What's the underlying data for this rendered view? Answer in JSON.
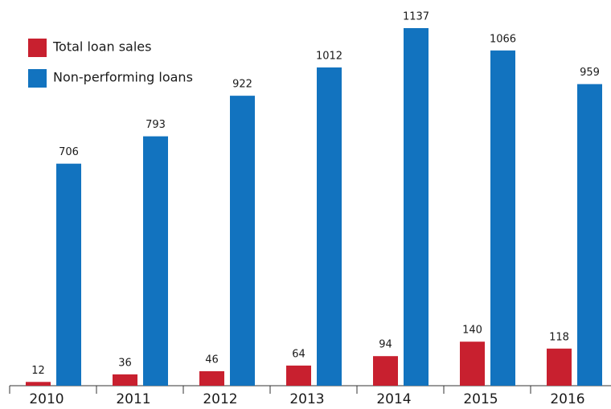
{
  "chart_data": {
    "type": "bar",
    "categories": [
      "2010",
      "2011",
      "2012",
      "2013",
      "2014",
      "2015",
      "2016"
    ],
    "series": [
      {
        "name": "Total loan sales",
        "color": "#c8202f",
        "values": [
          12,
          36,
          46,
          64,
          94,
          140,
          118
        ]
      },
      {
        "name": "Non-performing loans",
        "color": "#1273bf",
        "values": [
          706,
          793,
          922,
          1012,
          1137,
          1066,
          959
        ]
      }
    ],
    "legend": "upper left"
  }
}
